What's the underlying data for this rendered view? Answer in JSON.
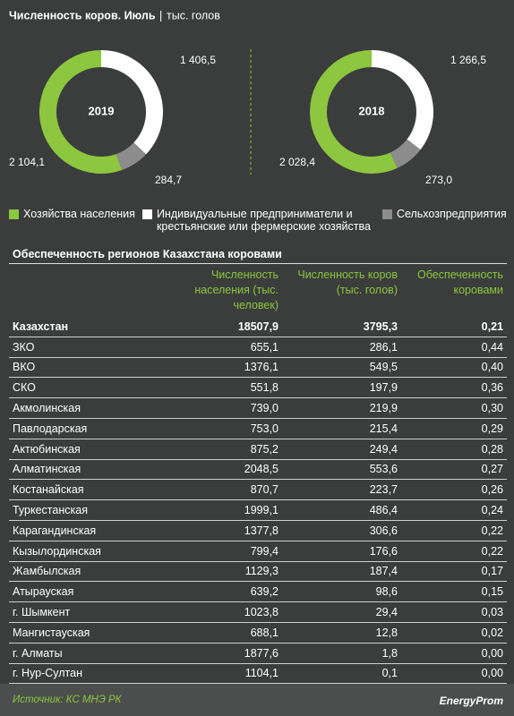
{
  "title": "Численность коров. Июль",
  "subtitle": "тыс. голов",
  "legend": [
    "Хозяйства населения",
    "Индивидуальные предприниматели и крестьянские или фермерские хозяйства",
    "Сельхозпредприятия"
  ],
  "chart_data": [
    {
      "type": "pie",
      "title": "2019",
      "values": [
        2104.1,
        1406.5,
        284.7
      ],
      "value_labels": [
        "2 104,1",
        "1 406,5",
        "284,7"
      ],
      "colors": [
        "#8dc63f",
        "#ffffff",
        "#8c8c8c"
      ]
    },
    {
      "type": "pie",
      "title": "2018",
      "values": [
        2028.4,
        1266.5,
        273.0
      ],
      "value_labels": [
        "2 028,4",
        "1 266,5",
        "273,0"
      ],
      "colors": [
        "#8dc63f",
        "#ffffff",
        "#8c8c8c"
      ]
    }
  ],
  "table": {
    "title": "Обеспеченность регионов Казахстана коровами",
    "headers": [
      "Численность населения (тыс. человек)",
      "Численность коров (тыс. голов)",
      "Обеспеченность коровами"
    ],
    "rows": [
      [
        "Казахстан",
        "18507,9",
        "3795,3",
        "0,21"
      ],
      [
        "ЗКО",
        "655,1",
        "286,1",
        "0,44"
      ],
      [
        "ВКО",
        "1376,1",
        "549,5",
        "0,40"
      ],
      [
        "СКО",
        "551,8",
        "197,9",
        "0,36"
      ],
      [
        "Акмолинская",
        "739,0",
        "219,9",
        "0,30"
      ],
      [
        "Павлодарская",
        "753,0",
        "215,4",
        "0,29"
      ],
      [
        "Актюбинская",
        "875,2",
        "249,4",
        "0,28"
      ],
      [
        "Алматинская",
        "2048,5",
        "553,6",
        "0,27"
      ],
      [
        "Костанайская",
        "870,7",
        "223,7",
        "0,26"
      ],
      [
        "Туркестанская",
        "1999,1",
        "486,4",
        "0,24"
      ],
      [
        "Карагандинская",
        "1377,8",
        "306,6",
        "0,22"
      ],
      [
        "Кызылординская",
        "799,4",
        "176,6",
        "0,22"
      ],
      [
        "Жамбылская",
        "1129,3",
        "187,4",
        "0,17"
      ],
      [
        "Атырауская",
        "639,2",
        "98,6",
        "0,15"
      ],
      [
        "г. Шымкент",
        "1023,8",
        "29,4",
        "0,03"
      ],
      [
        "Мангистауская",
        "688,1",
        "12,8",
        "0,02"
      ],
      [
        "г. Алматы",
        "1877,6",
        "1,8",
        "0,00"
      ],
      [
        "г. Нур-Султан",
        "1104,1",
        "0,1",
        "0,00"
      ]
    ]
  },
  "footer": {
    "source": "Источник: КС МНЭ РК",
    "logo": "EnergyProm"
  }
}
